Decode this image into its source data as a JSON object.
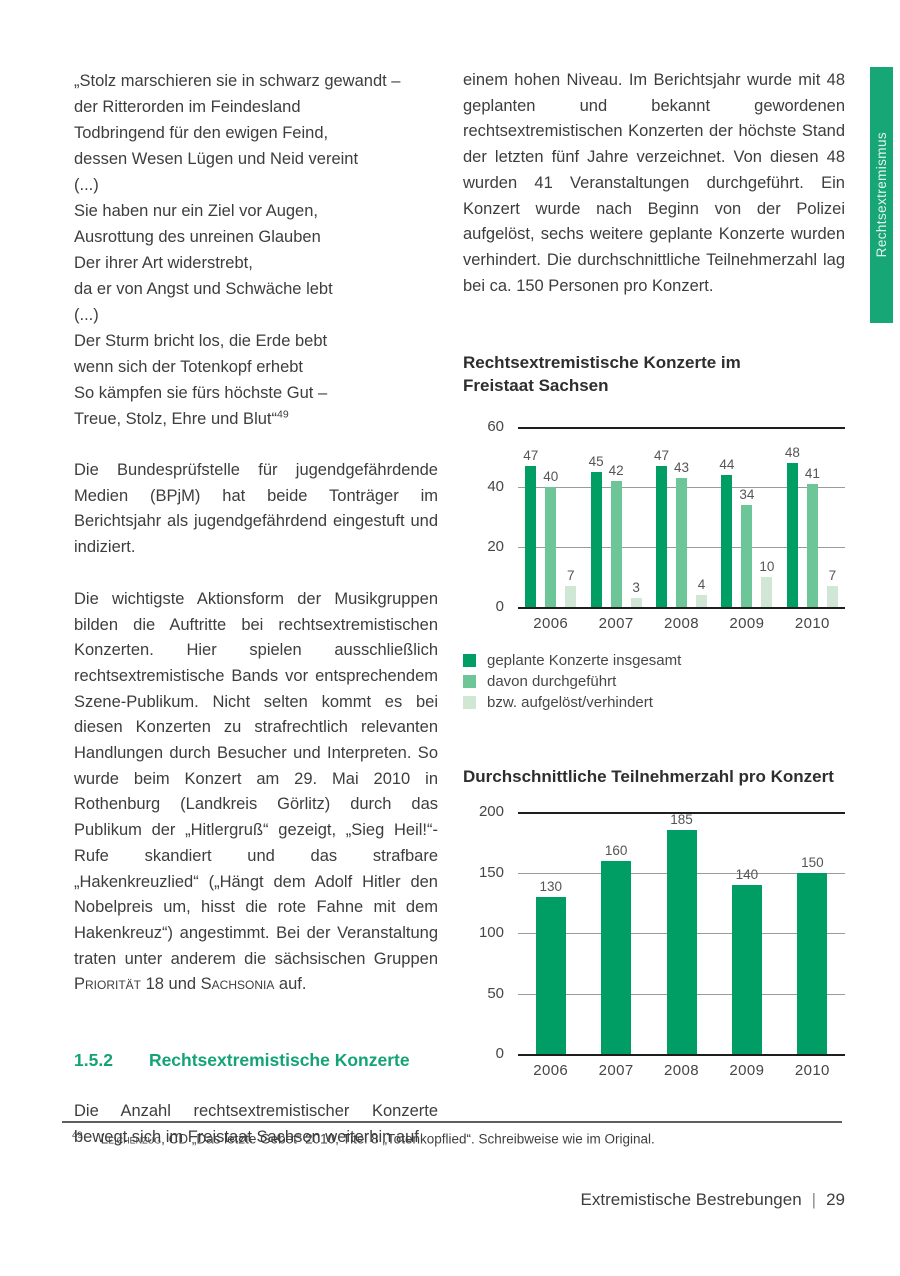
{
  "page": {
    "footnote": {
      "marker": "49",
      "source": "Leichenzug",
      "rest": ", CD „Das letzte Gebet“ 2010, Titel 8 „Totenkopflied“. Schreibweise wie im Original."
    },
    "footer": {
      "section": "Extremistische Bestrebungen",
      "separator": "|",
      "page_number": "29"
    },
    "side_tab": {
      "label": "Rechtsextremismus",
      "color": "#17A676"
    }
  },
  "colors": {
    "accent_green": "#14A376",
    "bar_dark": "#009E64",
    "bar_medium": "#6CC697",
    "bar_light": "#CFE7D4"
  },
  "left_column": {
    "poem_lines": [
      "„Stolz marschieren sie in schwarz gewandt –",
      "der Ritterorden im Feindesland",
      "Todbringend für den ewigen Feind,",
      "dessen Wesen Lügen und Neid vereint",
      "(...)",
      "Sie haben nur ein Ziel vor Augen,",
      "Ausrottung des unreinen Glauben",
      "Der ihrer Art widerstrebt,",
      "da er von Angst und Schwäche lebt",
      "(...)",
      "Der Sturm bricht los, die Erde bebt",
      "wenn sich der Totenkopf erhebt",
      "So kämpfen sie fürs höchste Gut –",
      "Treue, Stolz, Ehre und Blut“"
    ],
    "footnote_ref": "49",
    "paragraph1": "Die Bundesprüfstelle für jugendgefährdende Medien (BPjM) hat beide Tonträger im Berichtsjahr als jugendgefährdend eingestuft und indiziert.",
    "paragraph2": {
      "before": "Die wichtigste Aktionsform der Musikgruppen bilden die Auftritte bei rechtsextremistischen Konzerten. Hier spielen ausschließlich rechtsextremistische Bands vor entsprechendem Szene-Publikum. Nicht selten kommt es bei diesen Konzerten zu strafrechtlich relevanten Handlungen durch Besucher und Interpreten. So wurde beim Konzert am 29. Mai 2010 in Rothenburg (Landkreis Görlitz) durch das Publikum der „Hitlergruß“ gezeigt, „Sieg Heil!“-Rufe skandiert und das strafbare „Hakenkreuzlied“ („Hängt dem Adolf Hitler den Nobelpreis um, hisst die rote Fahne mit dem Hakenkreuz“) angestimmt. Bei der Veranstaltung traten unter anderem die sächsischen Gruppen ",
      "band1": "Priorität",
      "mid": " 18 und ",
      "band2": "Sachsonia",
      "after": " auf."
    },
    "heading": {
      "number": "1.5.2",
      "title": "Rechtsextremistische Konzerte"
    },
    "paragraph3": "Die Anzahl rechtsextremistischer Konzerte bewegt sich im Freistaat Sachsen weiterhin auf"
  },
  "right_column": {
    "paragraph": "einem hohen Niveau. Im Berichtsjahr wurde mit 48 geplanten und bekannt gewordenen rechtsextremistischen Konzerten der höchste Stand der letzten fünf Jahre verzeichnet. Von diesen 48 wurden 41 Veranstaltungen durchgeführt. Ein Konzert wurde nach Beginn von der Polizei aufgelöst, sechs weitere geplante Konzerte wurden verhindert. Die durchschnittliche Teilnehmerzahl lag bei ca. 150 Personen pro Konzert."
  },
  "chart_data": [
    {
      "type": "bar",
      "title": "Rechtsextremistische Konzerte im Freistaat Sachsen",
      "categories": [
        "2006",
        "2007",
        "2008",
        "2009",
        "2010"
      ],
      "series": [
        {
          "name": "geplante Konzerte insgesamt",
          "color": "#009E64",
          "values": [
            47,
            45,
            47,
            44,
            48
          ]
        },
        {
          "name": "davon durchgeführt",
          "color": "#6CC697",
          "values": [
            40,
            42,
            43,
            34,
            41
          ]
        },
        {
          "name": "bzw. aufgelöst/verhindert",
          "color": "#CFE7D4",
          "values": [
            7,
            3,
            4,
            10,
            7
          ]
        }
      ],
      "xlabel": "",
      "ylabel": "",
      "ylim": [
        0,
        60
      ],
      "yticks": [
        0,
        20,
        40,
        60
      ],
      "grid": true,
      "legend_position": "below"
    },
    {
      "type": "bar",
      "title": "Durchschnittliche Teilnehmerzahl pro Konzert",
      "categories": [
        "2006",
        "2007",
        "2008",
        "2009",
        "2010"
      ],
      "series": [
        {
          "name": "Durchschnittliche Teilnehmerzahl",
          "color": "#009E64",
          "values": [
            130,
            160,
            185,
            140,
            150
          ]
        }
      ],
      "xlabel": "",
      "ylabel": "",
      "ylim": [
        0,
        200
      ],
      "yticks": [
        0,
        50,
        100,
        150,
        200
      ],
      "grid": true,
      "legend_position": "none"
    }
  ]
}
